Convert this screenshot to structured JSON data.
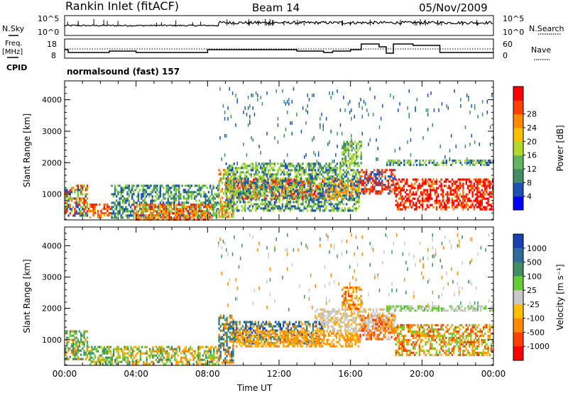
{
  "header": {
    "title": "Rankin Inlet (fitACF)",
    "beam": "Beam 14",
    "date": "05/Nov/2009"
  },
  "aux": {
    "nsky_label": "N.Sky",
    "nsearch_label": "N.Search",
    "freq_label": "Freq.",
    "freq_unit": "[MHz]",
    "nave_label": "Nave",
    "cpid_label": "CPID",
    "cpid_text": "normalsound (fast) 157",
    "noise_ticks": [
      "10^5",
      "10^0"
    ],
    "freq_ticks": [
      "18",
      "8"
    ],
    "nave_ticks": [
      "60",
      "0"
    ]
  },
  "chart_data": [
    {
      "type": "heatmap",
      "name": "power-panel",
      "xlabel": "",
      "ylabel": "Slant Range [km]",
      "xlim_hours": [
        0,
        24
      ],
      "ylim": [
        180,
        4600
      ],
      "y_ticks": [
        1000,
        2000,
        3000,
        4000
      ],
      "colorbar": {
        "label": "Power [dB]",
        "tick_labels": [
          "4",
          "8",
          "12",
          "16",
          "20",
          "24",
          "28"
        ],
        "colors": [
          "#0000ff",
          "#1c52b4",
          "#3f8f62",
          "#5fb65f",
          "#b5d82d",
          "#ffc000",
          "#ff8a00",
          "#ff4000",
          "#ff0000"
        ]
      },
      "regions": [
        {
          "t": [
            0.0,
            1.3
          ],
          "r": [
            350,
            1300
          ],
          "colors": [
            "#ff2200",
            "#ff8000",
            "#7ecb3a",
            "#1c52b4"
          ]
        },
        {
          "t": [
            1.3,
            2.6
          ],
          "r": [
            250,
            700
          ],
          "colors": [
            "#ff2200",
            "#ff6000",
            "#ffa000"
          ]
        },
        {
          "t": [
            2.6,
            8.6
          ],
          "r": [
            220,
            1300
          ],
          "colors": [
            "#1c52b4",
            "#3f8f62",
            "#7ecb3a"
          ]
        },
        {
          "t": [
            3.8,
            8.2
          ],
          "r": [
            220,
            700
          ],
          "colors": [
            "#ff2200",
            "#ff8000",
            "#ffb000"
          ]
        },
        {
          "t": [
            8.6,
            9.4
          ],
          "r": [
            300,
            1800
          ],
          "colors": [
            "#ff6000",
            "#ffb000",
            "#7ecb3a"
          ]
        },
        {
          "t": [
            9.4,
            14.5
          ],
          "r": [
            850,
            1500
          ],
          "colors": [
            "#ff0000",
            "#ff4000",
            "#ff8000"
          ]
        },
        {
          "t": [
            9.0,
            16.5
          ],
          "r": [
            500,
            2000
          ],
          "colors": [
            "#1c52b4",
            "#3f8f62",
            "#7ecb3a",
            "#b5d82d"
          ]
        },
        {
          "t": [
            14.5,
            16.5
          ],
          "r": [
            850,
            1500
          ],
          "colors": [
            "#ff8000",
            "#ffb000",
            "#1c52b4"
          ]
        },
        {
          "t": [
            15.5,
            16.6
          ],
          "r": [
            2000,
            2700
          ],
          "colors": [
            "#7ecb3a",
            "#b5d82d",
            "#3f8f62"
          ]
        },
        {
          "t": [
            16.5,
            18.5
          ],
          "r": [
            1000,
            1800
          ],
          "colors": [
            "#ff2200",
            "#ff6000",
            "#1c52b4"
          ]
        },
        {
          "t": [
            18.5,
            24.0
          ],
          "r": [
            500,
            1500
          ],
          "colors": [
            "#ff0000",
            "#ff0000",
            "#ff3000",
            "#ff8000"
          ]
        },
        {
          "t": [
            18.0,
            24.0
          ],
          "r": [
            1900,
            2100
          ],
          "colors": [
            "#b5d82d",
            "#5fb65f",
            "#1c52b4"
          ]
        },
        {
          "t": [
            8.5,
            24.0
          ],
          "r": [
            2000,
            4400
          ],
          "colors": [
            "#1c52b4",
            "#3f8f62"
          ],
          "sparse": true
        }
      ]
    },
    {
      "type": "heatmap",
      "name": "velocity-panel",
      "xlabel": "Time UT",
      "ylabel": "Slant Range [km]",
      "xlim_hours": [
        0,
        24
      ],
      "ylim": [
        180,
        4600
      ],
      "x_ticks": [
        "00:00",
        "04:00",
        "08:00",
        "12:00",
        "16:00",
        "20:00",
        "00:00"
      ],
      "y_ticks": [
        1000,
        2000,
        3000,
        4000
      ],
      "colorbar": {
        "label": "Velocity [m s⁻¹]",
        "tick_labels": [
          "1000",
          "500",
          "100",
          "25",
          "-25",
          "-100",
          "-500",
          "-1000"
        ],
        "colors": [
          "#1a3fb5",
          "#2b6e9e",
          "#3f8f62",
          "#66cc33",
          "#c8c8c8",
          "#ffc000",
          "#ff8a00",
          "#ff4000",
          "#ff0000"
        ]
      },
      "regions": [
        {
          "t": [
            0.0,
            1.3
          ],
          "r": [
            350,
            1300
          ],
          "colors": [
            "#3f8f62",
            "#66cc33",
            "#ff8a00"
          ]
        },
        {
          "t": [
            1.3,
            3.5
          ],
          "r": [
            250,
            800
          ],
          "colors": [
            "#3f8f62",
            "#66cc33",
            "#ffb000"
          ]
        },
        {
          "t": [
            3.5,
            8.6
          ],
          "r": [
            220,
            800
          ],
          "colors": [
            "#ff8a00",
            "#ffb000",
            "#66cc33",
            "#3f8f62"
          ]
        },
        {
          "t": [
            8.6,
            9.4
          ],
          "r": [
            300,
            1800
          ],
          "colors": [
            "#ff8a00",
            "#3f8f62",
            "#2b6e9e"
          ]
        },
        {
          "t": [
            9.4,
            14.5
          ],
          "r": [
            900,
            1600
          ],
          "colors": [
            "#1a3fb5",
            "#2b6e9e",
            "#3f8f62",
            "#ff8a00"
          ]
        },
        {
          "t": [
            9.4,
            16.5
          ],
          "r": [
            800,
            1300
          ],
          "colors": [
            "#ff8a00",
            "#ffb000"
          ]
        },
        {
          "t": [
            14.0,
            18.5
          ],
          "r": [
            1300,
            2000
          ],
          "colors": [
            "#c8c8c8",
            "#c8c8c8",
            "#ffb000"
          ]
        },
        {
          "t": [
            15.5,
            16.6
          ],
          "r": [
            2000,
            2700
          ],
          "colors": [
            "#ff8a00",
            "#ff4000",
            "#ffb000"
          ]
        },
        {
          "t": [
            16.5,
            18.5
          ],
          "r": [
            1000,
            1800
          ],
          "colors": [
            "#ff4000",
            "#ff8a00",
            "#c8c8c8"
          ]
        },
        {
          "t": [
            18.5,
            24.0
          ],
          "r": [
            500,
            1500
          ],
          "colors": [
            "#ff8a00",
            "#ffb000",
            "#ff4000",
            "#66cc33"
          ]
        },
        {
          "t": [
            18.0,
            24.0
          ],
          "r": [
            1900,
            2100
          ],
          "colors": [
            "#c8c8c8",
            "#66cc33"
          ]
        },
        {
          "t": [
            8.5,
            24.0
          ],
          "r": [
            2000,
            4400
          ],
          "colors": [
            "#ff8a00",
            "#3f8f62",
            "#c8c8c8"
          ],
          "sparse": true
        }
      ]
    }
  ]
}
